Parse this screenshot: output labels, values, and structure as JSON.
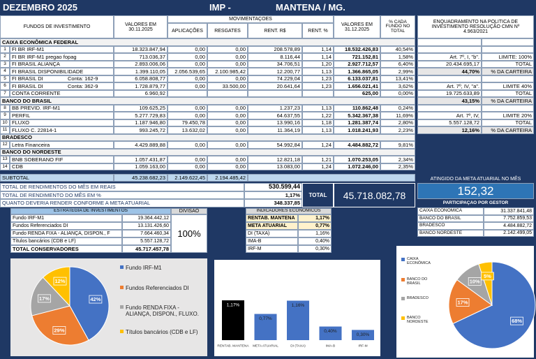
{
  "header": {
    "title": "DEZEMBRO 2025",
    "org": "IMP -",
    "city": "MANTENA / MG."
  },
  "table": {
    "headers": {
      "fund": "FUNDOS DE INVESTIMENTO",
      "start": "VALORES EM 30.11.2025",
      "movements": "MOVIMENTAÇOES",
      "applications": "APLICAÇÕES",
      "redemptions": "RESGATES",
      "return_value": "RENT. R$",
      "return_pct": "RENT. %",
      "end": "VALORES EM 31.12.2025",
      "share": "% CADA FUNDO NO TOTAL",
      "policy": "ENQUADRAMENTO NA POLITICA DE INVESTIMENTO RESOLUÇÃO CMN Nº 4.963/2021"
    },
    "rows": [
      {
        "section": "CAIXA ECONÔMICA FEDERAL"
      },
      {
        "num": "1",
        "name": "FI BR IRF-M1",
        "cells": [
          "18.323.847,94",
          "0,00",
          "0,00",
          "208.578,89",
          "1,14",
          "18.532.426,83",
          "40,54%"
        ]
      },
      {
        "num": "2",
        "name": "FI BR IRF-M1 pregao fopag",
        "cells": [
          "713.036,37",
          "0,00",
          "0,00",
          "8.116,44",
          "1,14",
          "721.152,81",
          "1,58%"
        ],
        "policy": [
          "Art. 7º, I, \"b\".",
          "LIMITE: 100%"
        ]
      },
      {
        "num": "3",
        "name": "FI BRASIL ALIANÇA",
        "cells": [
          "2.893.006,06",
          "0,00",
          "0,00",
          "34.706,51",
          "1,20",
          "2.927.712,57",
          "6,40%"
        ],
        "policy": [
          "20.434.695,17",
          "TOTAL"
        ]
      },
      {
        "num": "4",
        "name": "FI BRASIL DISPONIBILIDADE",
        "cells": [
          "1.399.110,05",
          "2.056.539,65",
          "2.100.985,42",
          "12.200,77",
          "1,13",
          "1.366.865,05",
          "2,99%"
        ],
        "policy": [
          "44,70%",
          "% DA CARTEIRA"
        ]
      },
      {
        "num": "5",
        "name": "FI BRASIL DI",
        "account": "Conta: 162-9",
        "cells": [
          "6.058.808,77",
          "0,00",
          "0,00",
          "74.229,04",
          "1,23",
          "6.133.037,81",
          "13,41%"
        ]
      },
      {
        "num": "6",
        "name": "FI BRASIL DI",
        "account": "Conta: 362-9",
        "cells": [
          "1.728.879,77",
          "0,00",
          "33.500,00",
          "20.641,64",
          "1,23",
          "1.656.021,41",
          "3,62%"
        ],
        "policy": [
          "Art. 7º, IV, \"a\".",
          "LIMITE 40%"
        ]
      },
      {
        "num": "7",
        "name": "CONTA CORRENTE",
        "cells": [
          "6.960,92",
          null,
          null,
          null,
          null,
          "625,00",
          "0,00%"
        ],
        "policy": [
          "19.725.633,89",
          "TOTAL"
        ]
      },
      {
        "section": "BANCO DO BRASIL",
        "policy": [
          "43,15%",
          "% DA CARTEIRA"
        ]
      },
      {
        "num": "8",
        "name": "BB PREVID. IRF-M1",
        "cells": [
          "109.625,25",
          "0,00",
          "0,00",
          "1.237,23",
          "1,13",
          "110.862,48",
          "0,24%"
        ]
      },
      {
        "num": "9",
        "name": "PERFIL",
        "cells": [
          "5.277.729,83",
          "0,00",
          "0,00",
          "64.637,55",
          "1,22",
          "5.342.367,38",
          "11,69%"
        ],
        "policy": [
          "Art. 7º, IV,",
          "LIMITE 20%"
        ]
      },
      {
        "num": "10",
        "name": "FLUXO",
        "cells": [
          "1.187.946,80",
          "79.450,78",
          "0,00",
          "13.990,16",
          "1,18",
          "1.281.387,74",
          "2,80%"
        ],
        "policy": [
          "5.557.128,72",
          "TOTAL"
        ]
      },
      {
        "num": "11",
        "name": "FLUXO  C. 22814-1",
        "cells": [
          "993.245,72",
          "13.632,02",
          "0,00",
          "11.364,19",
          "1,13",
          "1.018.241,93",
          "2,23%"
        ],
        "policy": [
          "12,16%",
          "% DA CARTEIRA"
        ]
      },
      {
        "section": "BRADESCO"
      },
      {
        "num": "12",
        "name": "Letra Financeira",
        "cells": [
          "4.429.889,88",
          "0,00",
          "0,00",
          "54.992,84",
          "1,24",
          "4.484.882,72",
          "9,81%"
        ]
      },
      {
        "section": "BANCO DO NORDESTE"
      },
      {
        "num": "13",
        "name": "BNB SOBERANO FIF",
        "cells": [
          "1.057.431,87",
          "0,00",
          "0,00",
          "12.821,18",
          "1,21",
          "1.070.253,05",
          "2,34%"
        ]
      },
      {
        "num": "14",
        "name": "CDB",
        "cells": [
          "1.059.163,00",
          "0,00",
          "0,00",
          "13.083,00",
          "1,24",
          "1.072.246,00",
          "2,35%"
        ]
      }
    ],
    "subtotal": {
      "label": "SUBTOTAL",
      "start": "45.238.682,23",
      "applications": "2.149.622,45",
      "redemptions": "2.194.485,42"
    }
  },
  "summary": {
    "rows": [
      {
        "label": "TOTAL DE RENDIMENTOS DO MÊS EM REAIS",
        "value": "530.599,44"
      },
      {
        "label": "TOTAL DE RENDIMENTO DO MÊS EM %",
        "value": "1,17%"
      },
      {
        "label": "QUANTO DEVERIA RENDER CONFORME A META ATUARIAL",
        "value": "348.337,85"
      }
    ],
    "total_label": "TOTAL",
    "total": "45.718.082,78"
  },
  "goal": {
    "title": "ATINGIDO DA META ATUARIAL NO MÊS",
    "value": "152,32"
  },
  "managers": {
    "title": "PARTICIPAÇÃO POR GESTOR",
    "rows": [
      [
        "CAIXA ECONÔMICA",
        "31.337.841,48"
      ],
      [
        "BANCO DO BRASIL",
        "7.752.859,53"
      ],
      [
        "BRADESCO",
        "4.484.882,72"
      ],
      [
        "BANCO NORDESTE",
        "2.142.499,05"
      ]
    ]
  },
  "strategy": {
    "title": "ESTRATÉGIA DE INVESTIMENTOS",
    "division_title": "DIVISÃO",
    "division": "100%",
    "rows": [
      [
        "Fundo IRF-M1",
        "19.364.442,12"
      ],
      [
        "Fundos Referenciados DI",
        "13.131.426,60"
      ],
      [
        "Fundo RENDA FIXA - ALIANÇA, DISPON., F",
        "7.664.460,34"
      ],
      [
        "Títulos bancários (CDB e LF)",
        "5.557.128,72"
      ]
    ],
    "total": [
      "TOTAL CONSERVADORES",
      "45.717.457,78"
    ]
  },
  "indicators": {
    "title": "INDICADORES ECONOMICOS",
    "rows": [
      [
        "RENTAB. MANTENA",
        "1,17%"
      ],
      [
        "META ATUARIAL",
        "0,77%"
      ],
      [
        "DI (TAXA)",
        "1,16%"
      ],
      [
        "IMA-B",
        "0,40%"
      ],
      [
        "IRF-M",
        "0,30%"
      ]
    ]
  },
  "chart_data": [
    {
      "type": "pie",
      "categories": [
        "Fundo IRF-M1",
        "Fundos Referenciados DI",
        "Fundo RENDA FIXA - ALIANÇA, DISPON., FLUXO.",
        "Títulos bancários (CDB e LF)"
      ],
      "values": [
        42,
        29,
        17,
        12
      ],
      "value_labels": [
        "42%",
        "29%",
        "17%",
        "12%"
      ],
      "colors": [
        "#4472c4",
        "#ed7d31",
        "#a5a5a5",
        "#ffc000"
      ]
    },
    {
      "type": "bar",
      "categories": [
        "RENTAB. MANTENA",
        "META ATUARIAL",
        "DI (TAXA)",
        "IMA-B",
        "IRF-M"
      ],
      "values": [
        1.17,
        0.77,
        1.16,
        0.4,
        0.3
      ],
      "value_labels": [
        "1,17%",
        "0,77%",
        "1,16%",
        "0,40%",
        "0,30%"
      ],
      "colors": [
        "#000000",
        "#4472c4",
        "#4472c4",
        "#4472c4",
        "#4472c4"
      ]
    },
    {
      "type": "pie",
      "categories": [
        "CAIXA ECONÔMICA",
        "BANCO DO BRASIL",
        "BRADESCO",
        "BANCO NORDESTE"
      ],
      "values": [
        68,
        17,
        10,
        5
      ],
      "value_labels": [
        "68%",
        "17%",
        "10%",
        "5%"
      ],
      "colors": [
        "#4472c4",
        "#ed7d31",
        "#a5a5a5",
        "#ffc000"
      ]
    }
  ]
}
